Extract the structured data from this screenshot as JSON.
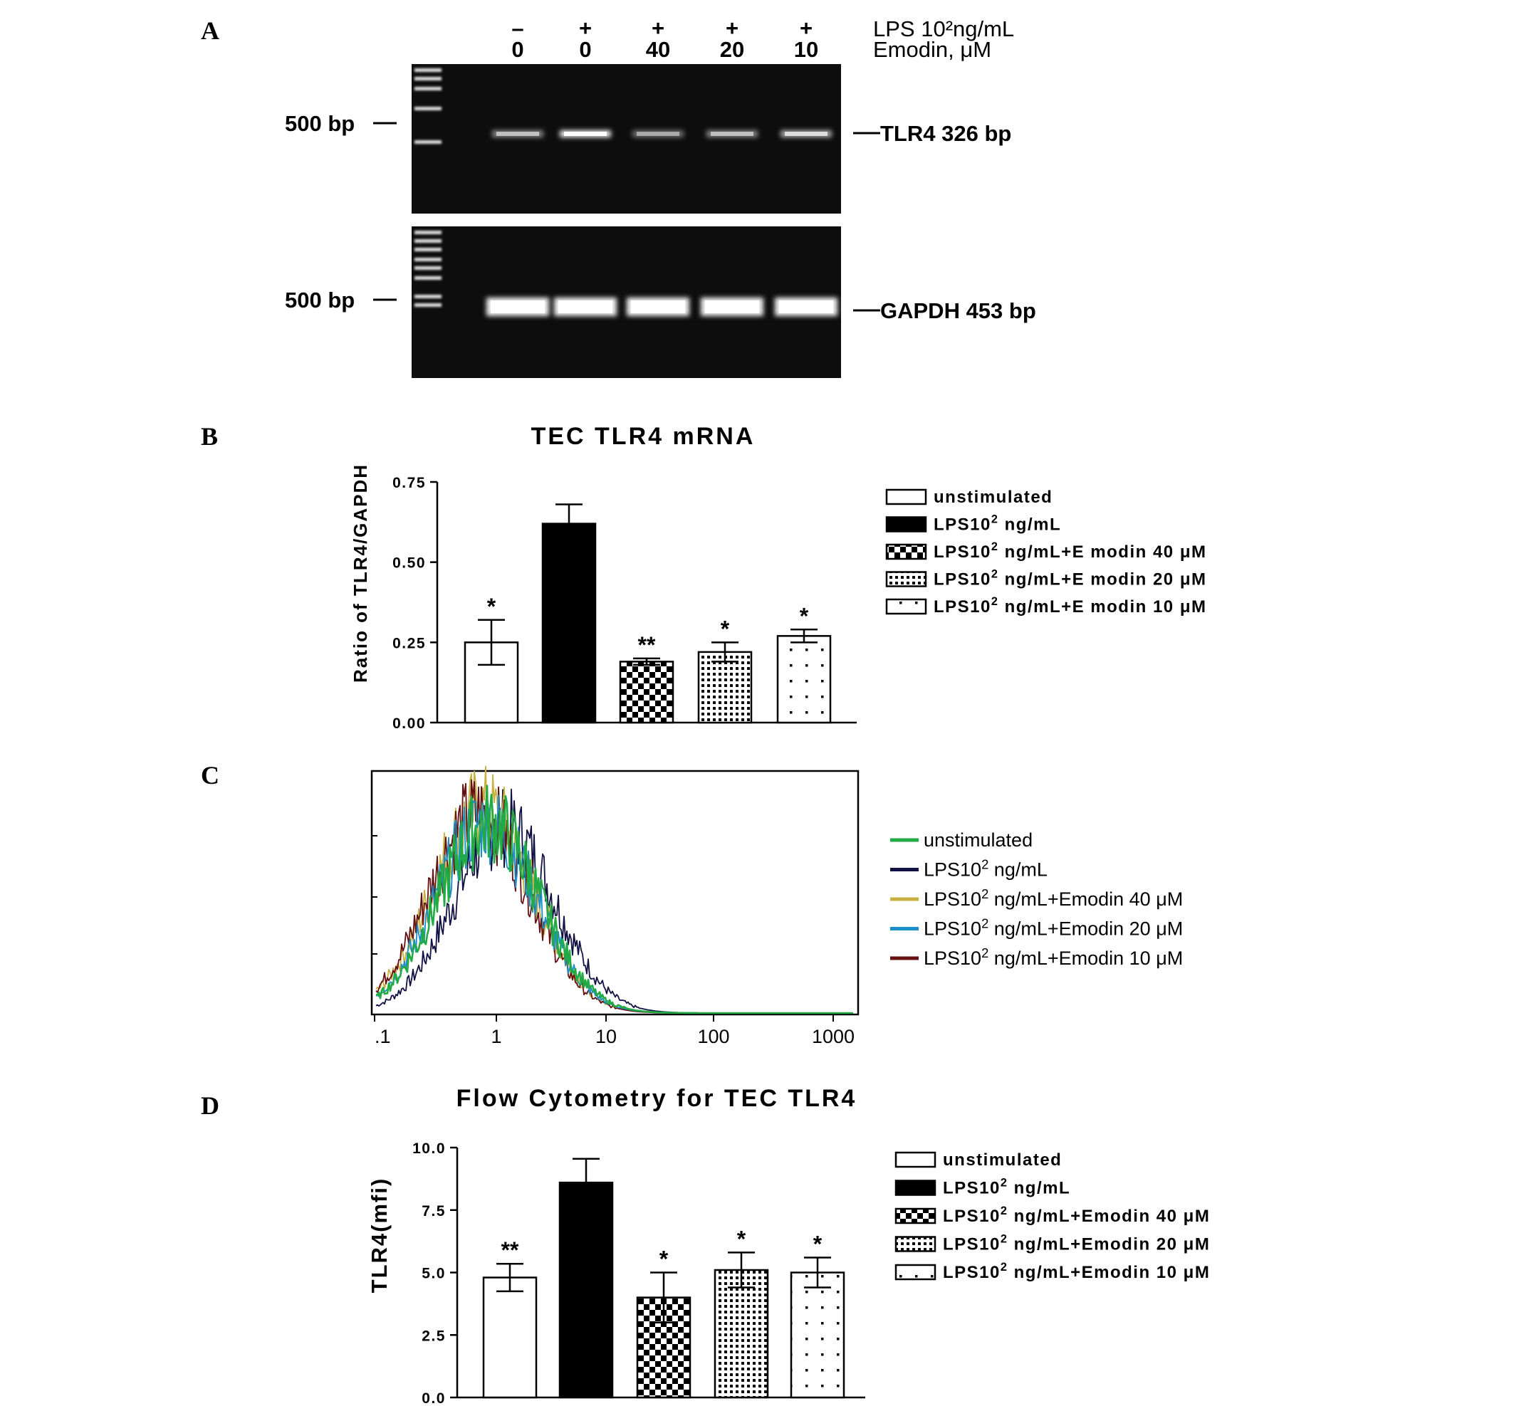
{
  "panels": {
    "a": "A",
    "b": "B",
    "c": "C",
    "d": "D"
  },
  "gel": {
    "lps_signs": [
      "–",
      "+",
      "+",
      "+",
      "+"
    ],
    "emodin_doses": [
      "0",
      "0",
      "40",
      "20",
      "10"
    ],
    "lps_label": "LPS 10²ng/mL",
    "emodin_label": "Emodin, μM",
    "marker_label": "500 bp",
    "tlr4_label": "TLR4 326 bp",
    "gapdh_label": "GAPDH 453 bp"
  },
  "legend_b": [
    {
      "label": "unstimulated",
      "sup": ""
    },
    {
      "pre": "LPS10",
      "sup": "2",
      "post": " ng/mL"
    },
    {
      "pre": "LPS10",
      "sup": "2",
      "post": " ng/mL+E modin 40 μM"
    },
    {
      "pre": "LPS10",
      "sup": "2",
      "post": " ng/mL+E modin 20 μM"
    },
    {
      "pre": "LPS10",
      "sup": "2",
      "post": " ng/mL+E modin 10 μM"
    }
  ],
  "legend_c": [
    {
      "pre": "unstimulated",
      "sup": "",
      "post": "",
      "color": "#22aa44"
    },
    {
      "pre": "LPS10",
      "sup": "2",
      "post": " ng/mL",
      "color": "#111144"
    },
    {
      "pre": "LPS10",
      "sup": "2",
      "post": " ng/mL+Emodin 40 μM",
      "color": "#c8b040"
    },
    {
      "pre": "LPS10",
      "sup": "2",
      "post": " ng/mL+Emodin 20 μM",
      "color": "#1a8ec8"
    },
    {
      "pre": "LPS10",
      "sup": "2",
      "post": " ng/mL+Emodin 10 μM",
      "color": "#661111"
    }
  ],
  "legend_d": [
    {
      "pre": "unstimulated",
      "sup": "",
      "post": ""
    },
    {
      "pre": "LPS10",
      "sup": "2",
      "post": " ng/mL"
    },
    {
      "pre": "LPS10",
      "sup": "2",
      "post": " ng/mL+Emodin 40 μM"
    },
    {
      "pre": "LPS10",
      "sup": "2",
      "post": " ng/mL+Emodin 20 μM"
    },
    {
      "pre": "LPS10",
      "sup": "2",
      "post": " ng/mL+Emodin 10 μM"
    }
  ],
  "chart_data": [
    {
      "type": "bar",
      "title": "TEC TLR4 mRNA",
      "ylabel": "Ratio of TLR4/GAPDH",
      "xlabel": "",
      "ylim": [
        0,
        0.75
      ],
      "yticks": [
        "0.00",
        "0.25",
        "0.50",
        "0.75"
      ],
      "categories": [
        "unstimulated",
        "LPS10² ng/mL",
        "LPS10² ng/mL+Emodin 40 μM",
        "LPS10² ng/mL+Emodin 20 μM",
        "LPS10² ng/mL+Emodin 10 μM"
      ],
      "values": [
        0.25,
        0.62,
        0.19,
        0.22,
        0.27
      ],
      "errors": [
        0.07,
        0.06,
        0.01,
        0.03,
        0.02
      ],
      "significance": [
        "*",
        "",
        "**",
        "*",
        "*"
      ],
      "fills": [
        "white",
        "black",
        "checker",
        "dense-dots",
        "sparse-dots"
      ],
      "legend_position": "right"
    },
    {
      "type": "line",
      "title": "",
      "xlabel": "",
      "ylabel": "",
      "x_scale": "log",
      "xlim": [
        0.1,
        1000
      ],
      "xticks": [
        ".1",
        "1",
        "10",
        "100",
        "1000"
      ],
      "series": [
        {
          "name": "unstimulated",
          "peak_x": 0.9,
          "peak_height": 0.8
        },
        {
          "name": "LPS10² ng/mL",
          "peak_x": 1.2,
          "peak_height": 0.78
        },
        {
          "name": "LPS10² ng/mL+Emodin 40 μM",
          "peak_x": 0.8,
          "peak_height": 0.86
        },
        {
          "name": "LPS10² ng/mL+Emodin 20 μM",
          "peak_x": 0.85,
          "peak_height": 0.8
        },
        {
          "name": "LPS10² ng/mL+Emodin 10 μM",
          "peak_x": 0.75,
          "peak_height": 0.84
        }
      ],
      "legend_position": "right"
    },
    {
      "type": "bar",
      "title": "Flow Cytometry for TEC TLR4",
      "ylabel": "TLR4(mfi)",
      "xlabel": "",
      "ylim": [
        0,
        10
      ],
      "yticks": [
        "0.0",
        "2.5",
        "5.0",
        "7.5",
        "10.0"
      ],
      "categories": [
        "unstimulated",
        "LPS10² ng/mL",
        "LPS10² ng/mL+Emodin 40 μM",
        "LPS10² ng/mL+Emodin 20 μM",
        "LPS10² ng/mL+Emodin 10 μM"
      ],
      "values": [
        4.8,
        8.6,
        4.0,
        5.1,
        5.0
      ],
      "errors": [
        0.55,
        0.95,
        1.0,
        0.7,
        0.6
      ],
      "significance": [
        "**",
        "",
        "*",
        "*",
        "*"
      ],
      "fills": [
        "white",
        "black",
        "checker",
        "dense-dots",
        "sparse-dots"
      ],
      "legend_position": "right"
    }
  ]
}
